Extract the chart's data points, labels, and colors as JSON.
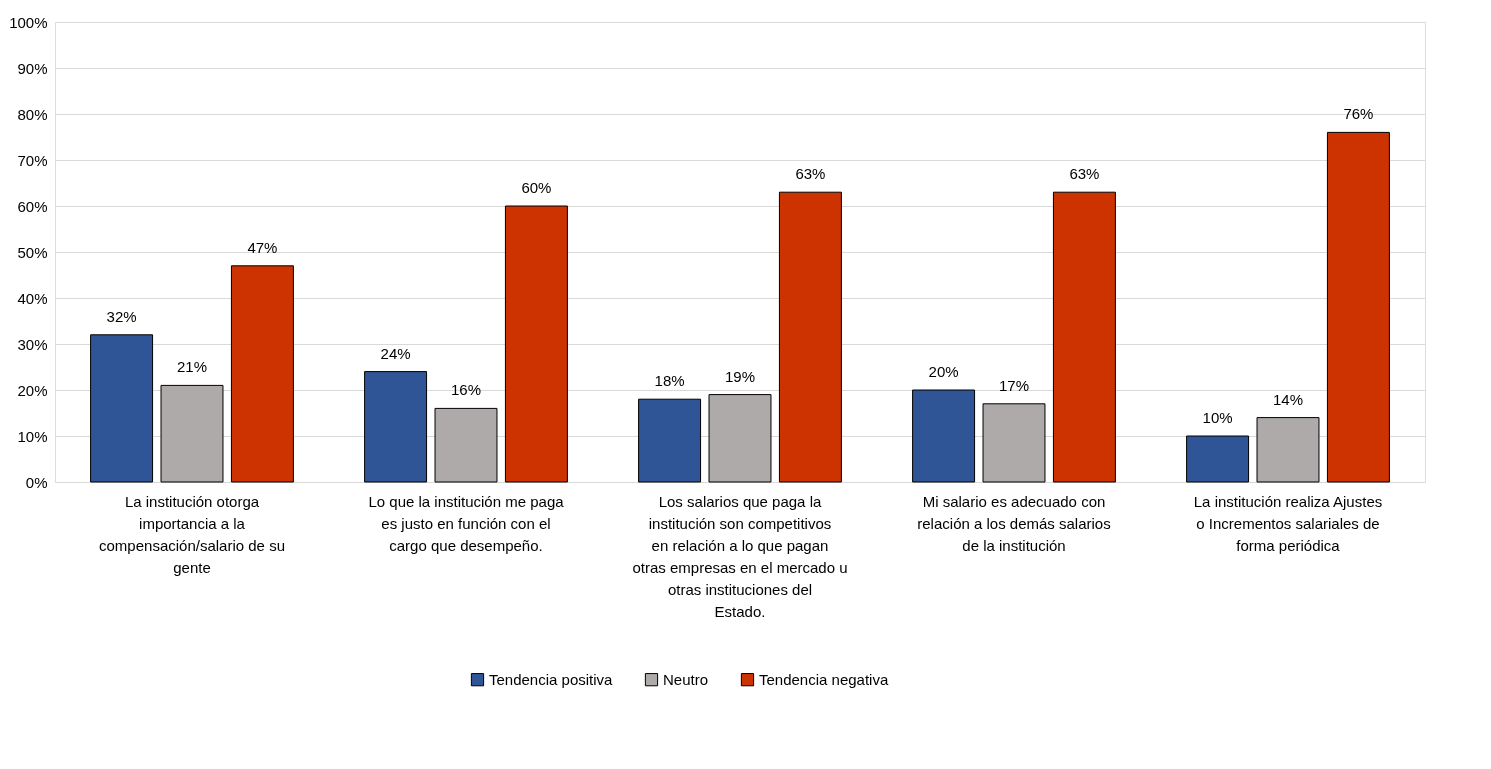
{
  "chart_data": {
    "type": "bar",
    "categories": [
      "La institución otorga importancia a la compensación/salario de su gente",
      "Lo que la institución me paga es justo en función con el cargo que desempeño.",
      "Los salarios que paga la institución son competitivos en relación a lo que pagan otras empresas en el mercado u otras instituciones del Estado.",
      "Mi salario es adecuado con relación a los demás salarios de la institución",
      "La institución realiza Ajustes o Incrementos salariales de forma periódica"
    ],
    "series": [
      {
        "name": "Tendencia positiva",
        "color": "#2f5597",
        "values": [
          32,
          24,
          18,
          20,
          10
        ],
        "value_labels": [
          "32%",
          "24%",
          "18%",
          "20%",
          "10%"
        ]
      },
      {
        "name": "Neutro",
        "color": "#aeaaaa",
        "values": [
          21,
          16,
          19,
          17,
          14
        ],
        "value_labels": [
          "21%",
          "16%",
          "19%",
          "17%",
          "14%"
        ]
      },
      {
        "name": "Tendencia negativa",
        "color": "#cc3300",
        "values": [
          47,
          60,
          63,
          63,
          76
        ],
        "value_labels": [
          "47%",
          "60%",
          "63%",
          "63%",
          "76%"
        ]
      }
    ],
    "ylim": [
      0,
      100
    ],
    "yticks": [
      {
        "value": 0,
        "label": "0%"
      },
      {
        "value": 10,
        "label": "10%"
      },
      {
        "value": 20,
        "label": "20%"
      },
      {
        "value": 30,
        "label": "30%"
      },
      {
        "value": 40,
        "label": "40%"
      },
      {
        "value": 50,
        "label": "50%"
      },
      {
        "value": 60,
        "label": "60%"
      },
      {
        "value": 70,
        "label": "70%"
      },
      {
        "value": 80,
        "label": "80%"
      },
      {
        "value": 90,
        "label": "90%"
      },
      {
        "value": 100,
        "label": "100%"
      }
    ],
    "grid": "y",
    "legend": "bottom"
  }
}
